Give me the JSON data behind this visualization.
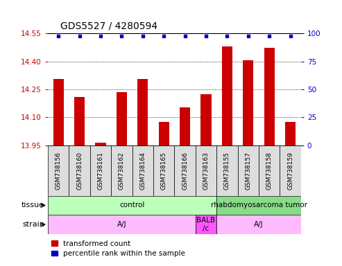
{
  "title": "GDS5527 / 4280594",
  "samples": [
    "GSM738156",
    "GSM738160",
    "GSM738161",
    "GSM738162",
    "GSM738164",
    "GSM738165",
    "GSM738166",
    "GSM738163",
    "GSM738155",
    "GSM738157",
    "GSM738158",
    "GSM738159"
  ],
  "bar_values": [
    14.305,
    14.21,
    13.965,
    14.235,
    14.305,
    14.075,
    14.155,
    14.225,
    14.48,
    14.405,
    14.475,
    14.075
  ],
  "bar_color": "#cc0000",
  "percentile_color": "#0000cc",
  "ylim_left": [
    13.95,
    14.55
  ],
  "ylim_right": [
    0,
    100
  ],
  "yticks_left": [
    13.95,
    14.1,
    14.25,
    14.4,
    14.55
  ],
  "yticks_right": [
    0,
    25,
    50,
    75,
    100
  ],
  "tissue_groups": [
    {
      "label": "control",
      "start": 0,
      "end": 8,
      "color": "#bbffbb"
    },
    {
      "label": "rhabdomyosarcoma tumor",
      "start": 8,
      "end": 12,
      "color": "#88dd88"
    }
  ],
  "strain_groups": [
    {
      "label": "A/J",
      "start": 0,
      "end": 7,
      "color": "#ffbbff"
    },
    {
      "label": "BALB\n/c",
      "start": 7,
      "end": 8,
      "color": "#ff55ff"
    },
    {
      "label": "A/J",
      "start": 8,
      "end": 12,
      "color": "#ffbbff"
    }
  ],
  "legend_items": [
    {
      "label": "transformed count",
      "color": "#cc0000"
    },
    {
      "label": "percentile rank within the sample",
      "color": "#0000cc"
    }
  ],
  "left_axis_color": "#cc0000",
  "right_axis_color": "#0000cc",
  "title_color": "black",
  "sample_box_color": "#dddddd"
}
